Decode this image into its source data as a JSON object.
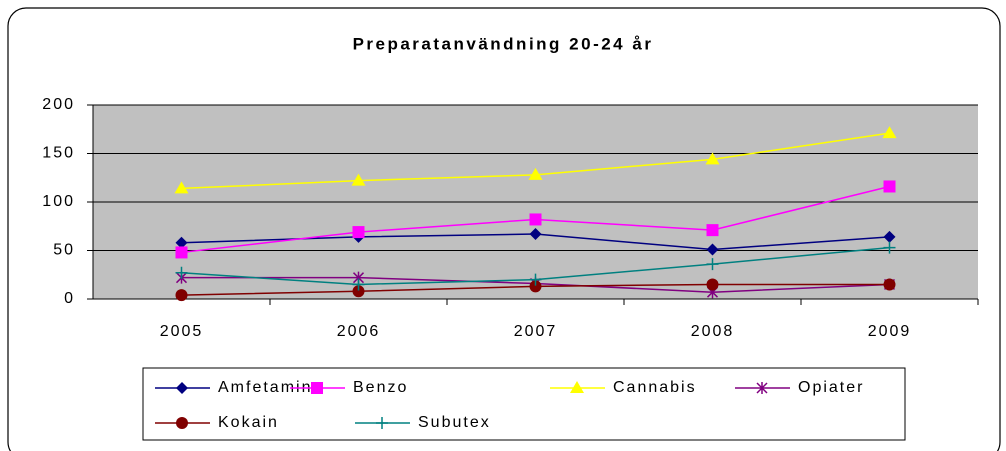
{
  "chart_data": {
    "type": "line",
    "title": "Preparatanvändning 20-24 år",
    "categories": [
      "2005",
      "2006",
      "2007",
      "2008",
      "2009"
    ],
    "series": [
      {
        "name": "Amfetamin",
        "color": "#000080",
        "marker": "diamond",
        "values": [
          58,
          64,
          67,
          51,
          64
        ]
      },
      {
        "name": "Benzo",
        "color": "#ff00ff",
        "marker": "square",
        "values": [
          48,
          69,
          82,
          71,
          116
        ]
      },
      {
        "name": "Cannabis",
        "color": "#ffff00",
        "marker": "triangle",
        "values": [
          114,
          122,
          128,
          144,
          171
        ]
      },
      {
        "name": "Opiater",
        "color": "#800080",
        "marker": "star",
        "values": [
          22,
          22,
          16,
          7,
          15
        ]
      },
      {
        "name": "Kokain",
        "color": "#800000",
        "marker": "circle",
        "values": [
          4,
          8,
          13,
          15,
          15
        ]
      },
      {
        "name": "Subutex",
        "color": "#008080",
        "marker": "plus",
        "values": [
          27,
          15,
          20,
          36,
          53
        ]
      }
    ],
    "ylim": [
      0,
      200
    ],
    "yticks": [
      0,
      50,
      100,
      150,
      200
    ],
    "grid": true,
    "plot_background": "#c0c0c0",
    "legend": "bottom"
  }
}
